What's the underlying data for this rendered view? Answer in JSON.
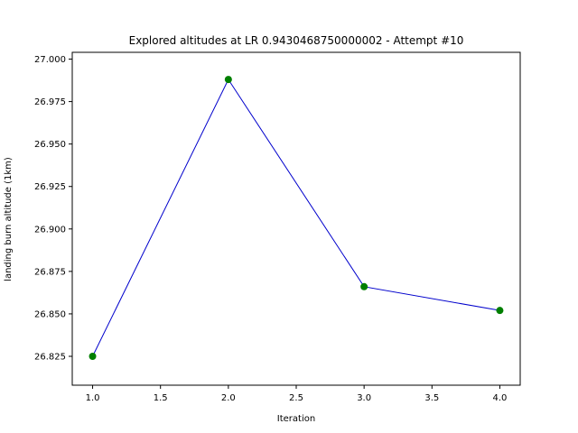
{
  "chart_data": {
    "type": "line",
    "title": "Explored altitudes at LR 0.9430468750000002 - Attempt #10",
    "xlabel": "Iteration",
    "ylabel": "landing burn altitude (1km)",
    "xlim": [
      0.85,
      4.15
    ],
    "ylim": [
      26.808,
      27.004
    ],
    "xticks": [
      1.0,
      1.5,
      2.0,
      2.5,
      3.0,
      3.5,
      4.0
    ],
    "xtick_labels": [
      "1.0",
      "1.5",
      "2.0",
      "2.5",
      "3.0",
      "3.5",
      "4.0"
    ],
    "yticks": [
      26.825,
      26.85,
      26.875,
      26.9,
      26.925,
      26.95,
      26.975,
      27.0
    ],
    "ytick_labels": [
      "26.825",
      "26.850",
      "26.875",
      "26.900",
      "26.925",
      "26.950",
      "26.975",
      "27.000"
    ],
    "grid": false,
    "series": [
      {
        "x": [
          1.0,
          2.0,
          3.0,
          4.0
        ],
        "y": [
          26.825,
          26.988,
          26.866,
          26.852
        ],
        "line_color": "#0000cc",
        "marker_color": "#007f00"
      }
    ]
  }
}
